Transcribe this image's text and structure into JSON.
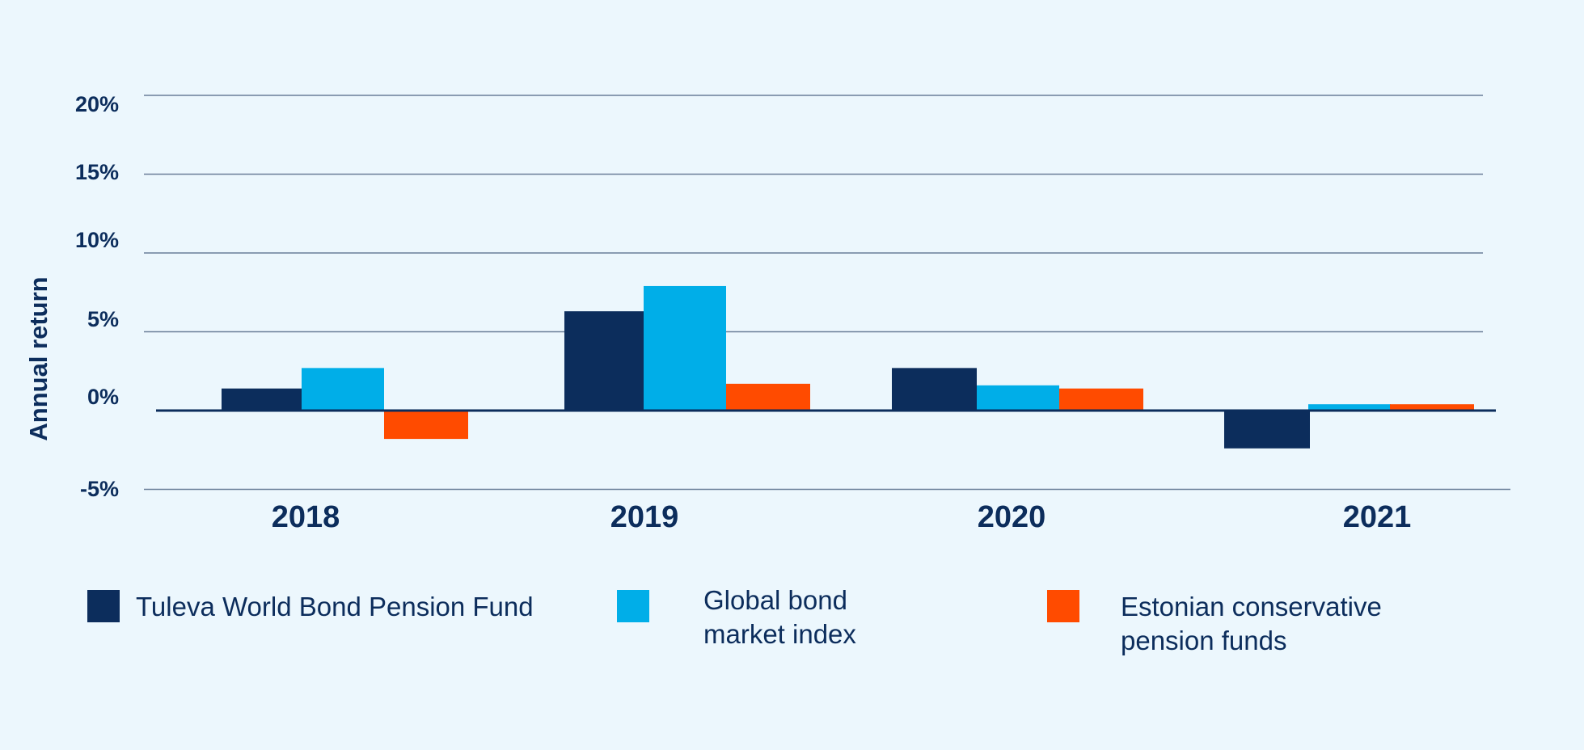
{
  "chart_data": {
    "type": "bar",
    "categories": [
      "2018",
      "2019",
      "2020",
      "2021"
    ],
    "series": [
      {
        "name": "Tuleva World Bond Pension Fund",
        "values": [
          1.4,
          6.3,
          2.7,
          -2.4
        ],
        "color": "#0c2d5c"
      },
      {
        "name": "Global bond market index",
        "values": [
          2.7,
          7.9,
          1.6,
          0.4
        ],
        "color": "#00aee8"
      },
      {
        "name": "Estonian conservative pension funds",
        "values": [
          -1.8,
          1.7,
          1.4,
          0.4
        ],
        "color": "#ff4b00"
      }
    ],
    "ylabel": "Annual return",
    "ylim": [
      -5,
      20
    ],
    "yticks": [
      20,
      15,
      10,
      5,
      0,
      -5
    ],
    "ytick_labels": [
      "20%",
      "15%",
      "10%",
      "5%",
      "0%",
      "-5%"
    ],
    "grid": true,
    "legend_position": "bottom"
  },
  "legend": [
    {
      "label_lines": [
        "Tuleva World Bond Pension Fund"
      ]
    },
    {
      "label_lines": [
        "Global bond",
        "market index"
      ]
    },
    {
      "label_lines": [
        "Estonian conservative",
        "pension funds"
      ]
    }
  ]
}
